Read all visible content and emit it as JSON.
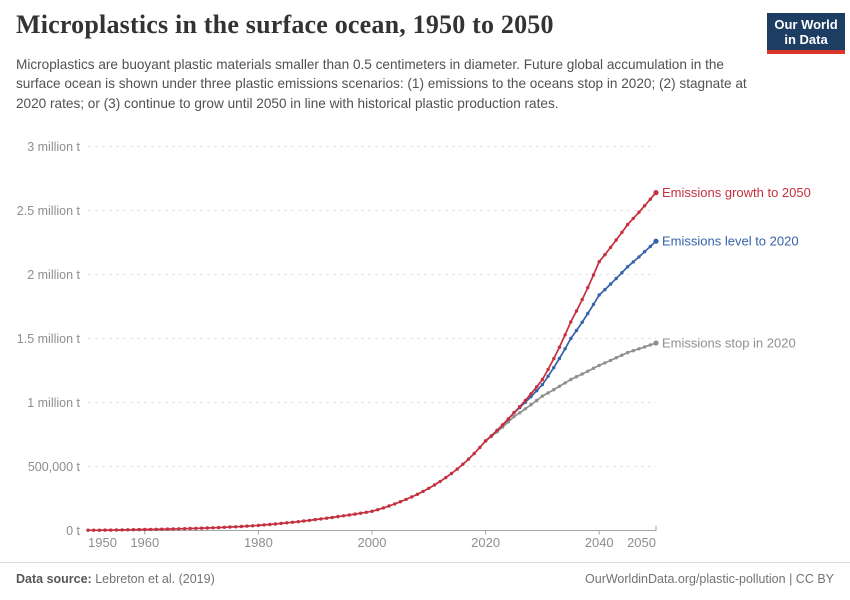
{
  "header": {
    "title": "Microplastics in the surface ocean, 1950 to 2050",
    "subtitle": "Microplastics are buoyant plastic materials smaller than 0.5 centimeters in diameter. Future global accumulation in the surface ocean is shown under three plastic emissions scenarios: (1) emissions to the oceans stop in 2020; (2) stagnate at 2020 rates; or (3) continue to grow until 2050 in line with historical plastic production rates.",
    "logo": {
      "line1": "Our World",
      "line2": "in Data",
      "bg_color": "#1d3d63",
      "bar_color": "#dc352c"
    }
  },
  "footer": {
    "source_label": "Data source:",
    "source_value": "Lebreton et al. (2019)",
    "link": "OurWorldinData.org/plastic-pollution",
    "divider": "|",
    "license": "CC BY"
  },
  "chart_data": {
    "type": "line",
    "title": "Microplastics in the surface ocean, 1950 to 2050",
    "unit": "tonnes",
    "x": {
      "label": "year",
      "range": [
        1950,
        2050
      ],
      "ticks": [
        1950,
        1960,
        1980,
        2000,
        2020,
        2040,
        2050
      ]
    },
    "y": {
      "label": "tonnes",
      "range": [
        0,
        3000000
      ],
      "ticks": [
        0,
        500000,
        1000000,
        1500000,
        2000000,
        2500000,
        3000000
      ],
      "tick_labels": [
        "0 t",
        "500,000 t",
        "1 million t",
        "1.5 million t",
        "2 million t",
        "2.5 million t",
        "3 million t"
      ],
      "gridlines": true,
      "grid_style": "dashed"
    },
    "legend_position": "line-end labels at right",
    "markers": "one dot per year, values between anchors interpolated smoothly",
    "series": [
      {
        "name": "Emissions growth to 2050",
        "color": "#c5303e",
        "points": [
          [
            1950,
            2000
          ],
          [
            1955,
            4000
          ],
          [
            1960,
            8000
          ],
          [
            1965,
            12000
          ],
          [
            1970,
            18000
          ],
          [
            1975,
            27000
          ],
          [
            1980,
            40000
          ],
          [
            1985,
            60000
          ],
          [
            1990,
            85000
          ],
          [
            1995,
            115000
          ],
          [
            2000,
            150000
          ],
          [
            2005,
            225000
          ],
          [
            2010,
            330000
          ],
          [
            2015,
            480000
          ],
          [
            2020,
            700000
          ],
          [
            2025,
            920000
          ],
          [
            2030,
            1180000
          ],
          [
            2035,
            1630000
          ],
          [
            2040,
            2100000
          ],
          [
            2045,
            2390000
          ],
          [
            2050,
            2640000
          ]
        ]
      },
      {
        "name": "Emissions level to 2020",
        "color": "#3562a8",
        "points": [
          [
            2020,
            700000
          ],
          [
            2025,
            920000
          ],
          [
            2030,
            1140000
          ],
          [
            2035,
            1500000
          ],
          [
            2040,
            1840000
          ],
          [
            2045,
            2060000
          ],
          [
            2050,
            2260000
          ]
        ]
      },
      {
        "name": "Emissions stop in 2020",
        "color": "#8f8f8f",
        "points": [
          [
            2020,
            700000
          ],
          [
            2025,
            890000
          ],
          [
            2030,
            1050000
          ],
          [
            2035,
            1180000
          ],
          [
            2040,
            1290000
          ],
          [
            2045,
            1390000
          ],
          [
            2050,
            1465000
          ]
        ]
      }
    ]
  }
}
